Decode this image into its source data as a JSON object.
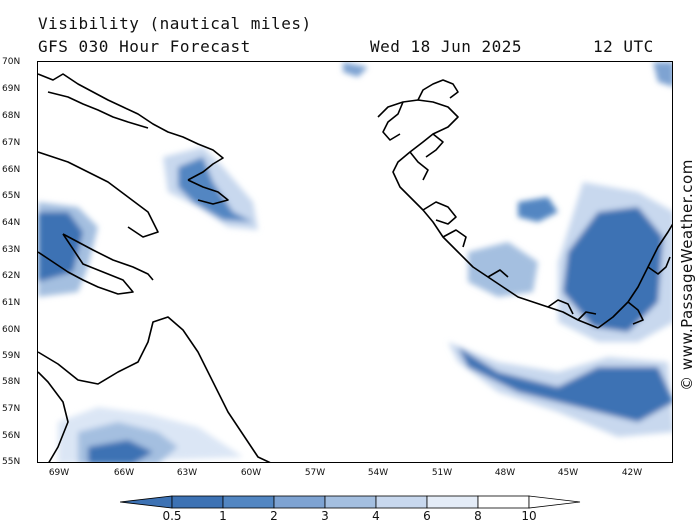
{
  "header": {
    "title": "Visibility (nautical miles)",
    "subtitle": "GFS 030 Hour Forecast",
    "date": "Wed 18 Jun 2025",
    "time": "12 UTC"
  },
  "credit": "© www.PassageWeather.com",
  "axes": {
    "lat_labels": [
      "70N",
      "69N",
      "68N",
      "67N",
      "66N",
      "65N",
      "64N",
      "63N",
      "62N",
      "61N",
      "60N",
      "59N",
      "58N",
      "57N",
      "56N",
      "55N"
    ],
    "lon_labels": [
      "69W",
      "66W",
      "63W",
      "60W",
      "57W",
      "54W",
      "51W",
      "48W",
      "45W",
      "42W"
    ]
  },
  "legend": {
    "labels": [
      "0.5",
      "1",
      "2",
      "3",
      "4",
      "6",
      "8",
      "10"
    ],
    "colors": [
      "#3d72b4",
      "#5286c2",
      "#7ea3d2",
      "#a4bfe0",
      "#c8d8ee",
      "#e4ecf7",
      "#ffffff"
    ]
  },
  "colors": {
    "land_outline": "#000000",
    "low_vis_dark": "#3d6eae",
    "low_vis_mid": "#8fb0da",
    "low_vis_light": "#dbe6f5"
  }
}
